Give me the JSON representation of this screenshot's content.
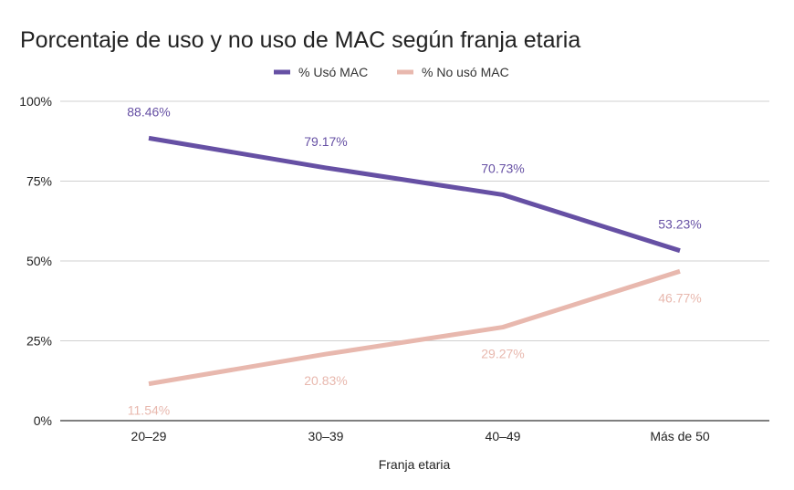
{
  "chart_data": {
    "type": "line",
    "title": "Porcentaje de uso y no uso de MAC según franja etaria",
    "xlabel": "Franja etaria",
    "ylabel": "",
    "categories": [
      "20–29",
      "30–39",
      "40–49",
      "Más de 50"
    ],
    "ylim": [
      0,
      100
    ],
    "yticks": [
      {
        "value": 0,
        "label": "0%"
      },
      {
        "value": 25,
        "label": "25%"
      },
      {
        "value": 50,
        "label": "50%"
      },
      {
        "value": 75,
        "label": "75%"
      },
      {
        "value": 100,
        "label": "100%"
      }
    ],
    "grid": true,
    "legend": "top-center",
    "series": [
      {
        "name": "% Usó MAC",
        "color": "#6650a4",
        "values": [
          88.46,
          79.17,
          70.73,
          53.23
        ],
        "labels": [
          "88.46%",
          "79.17%",
          "70.73%",
          "53.23%"
        ],
        "label_position": "above"
      },
      {
        "name": "% No usó MAC",
        "color": "#e8b8ae",
        "values": [
          11.54,
          20.83,
          29.27,
          46.77
        ],
        "labels": [
          "11.54%",
          "20.83%",
          "29.27%",
          "46.77%"
        ],
        "label_position": "below"
      }
    ]
  }
}
